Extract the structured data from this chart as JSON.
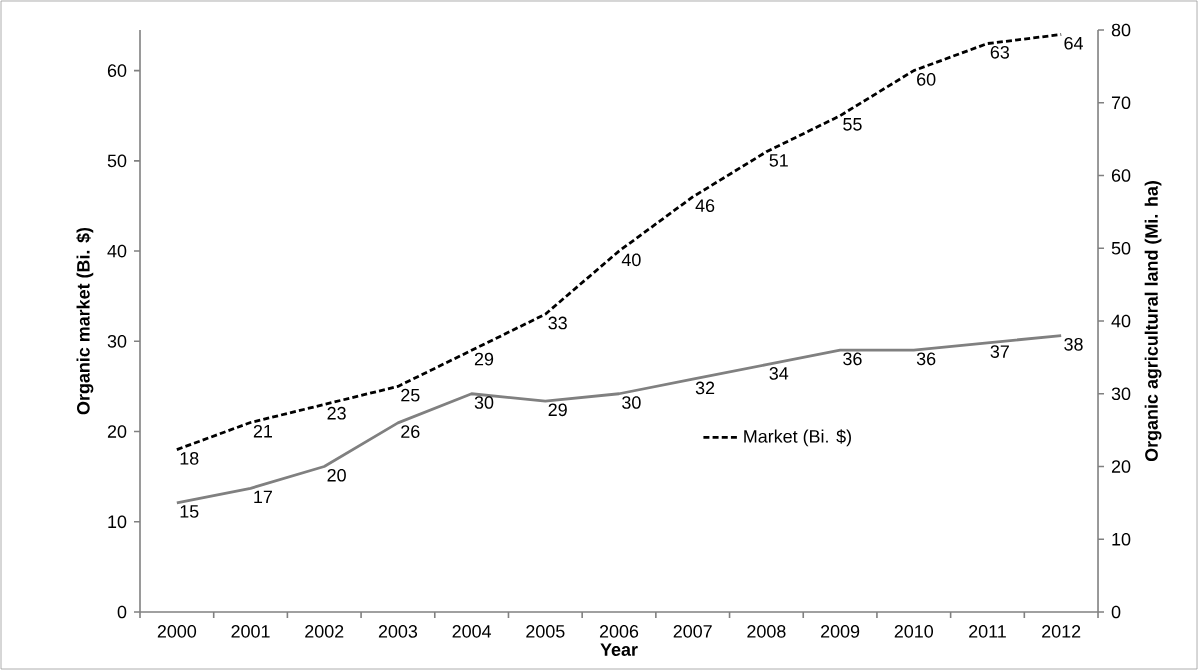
{
  "chart_data": {
    "type": "line",
    "xlabel": "Year",
    "ylabel": "Organic market (Bi. $)",
    "y2label": "Organic agricultural land (Mi. ha)",
    "categories": [
      "2000",
      "2001",
      "2002",
      "2003",
      "2004",
      "2005",
      "2006",
      "2007",
      "2008",
      "2009",
      "2010",
      "2011",
      "2012"
    ],
    "series": [
      {
        "name": "Market (Bi. $)",
        "color": "#000000",
        "line_style": "dashed",
        "values": [
          18,
          21,
          23,
          25,
          29,
          33,
          40,
          46,
          51,
          55,
          60,
          63,
          64
        ]
      },
      {
        "color": "#808080",
        "line_style": "solid",
        "axis": "y2",
        "values": [
          15,
          17,
          20,
          26,
          30,
          29,
          30,
          32,
          34,
          36,
          36,
          37,
          38
        ]
      }
    ],
    "ylim": [
      0,
      64.5
    ],
    "yticks": [
      0,
      10,
      20,
      30,
      40,
      50,
      60
    ],
    "y2lim": [
      0,
      80
    ],
    "y2ticks": [
      0,
      10,
      20,
      30,
      40,
      50,
      60,
      70,
      80
    ],
    "data_labels": true,
    "legend": "right",
    "grid": false,
    "marker": "none"
  }
}
